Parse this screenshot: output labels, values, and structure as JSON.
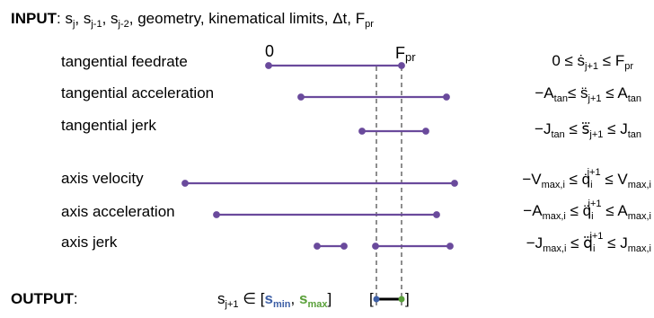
{
  "input": {
    "label": "INPUT",
    "params": "s_j, s_j-1, s_j-2, geometry, kinematical limits, Δt, F_pr"
  },
  "rows": [
    {
      "name": "tangential feedrate",
      "constraint": "0 ≤ ṡ_j+1 ≤ F_pr"
    },
    {
      "name": "tangential acceleration",
      "constraint": "−A_tan ≤ s̈_j+1 ≤ A_tan"
    },
    {
      "name": "tangential jerk",
      "constraint": "−J_tan ≤ s⃛_j+1 ≤ J_tan"
    },
    {
      "name": "axis velocity",
      "constraint": "−V_max,i ≤ q̇_i^j+1 ≤ V_max,i"
    },
    {
      "name": "axis acceleration",
      "constraint": "−A_max,i ≤ q̈_i^j+1 ≤ A_max,i"
    },
    {
      "name": "axis jerk",
      "constraint": "−J_max,i ≤ q⃛_i^j+1 ≤ J_max,i"
    }
  ],
  "axis_markers": {
    "zero": "0",
    "fpr": "F",
    "fpr_sub": "pr"
  },
  "output": {
    "label": "OUTPUT",
    "var": "s",
    "var_sub": "j+1",
    "in_symbol": "∈",
    "smin": "s",
    "smin_sub": "min",
    "smax": "s",
    "smax_sub": "max"
  },
  "colors": {
    "interval": "#6a4a9c",
    "smin": "#3d5fa6",
    "smax": "#5aa03a",
    "dashed": "#444444"
  }
}
